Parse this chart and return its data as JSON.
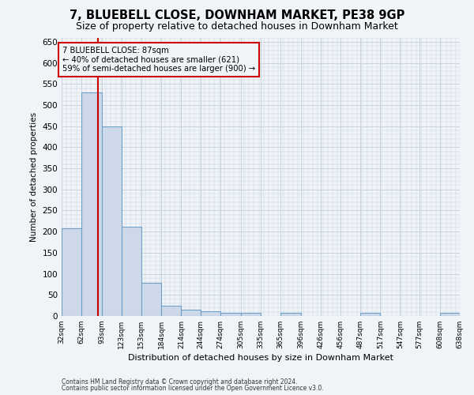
{
  "title": "7, BLUEBELL CLOSE, DOWNHAM MARKET, PE38 9GP",
  "subtitle": "Size of property relative to detached houses in Downham Market",
  "xlabel": "Distribution of detached houses by size in Downham Market",
  "ylabel": "Number of detached properties",
  "footnote1": "Contains HM Land Registry data © Crown copyright and database right 2024.",
  "footnote2": "Contains public sector information licensed under the Open Government Licence v3.0.",
  "bin_edges": [
    32,
    62,
    93,
    123,
    153,
    184,
    214,
    244,
    274,
    305,
    335,
    365,
    396,
    426,
    456,
    487,
    517,
    547,
    577,
    608,
    638
  ],
  "bar_heights": [
    207,
    530,
    450,
    212,
    78,
    25,
    15,
    12,
    8,
    8,
    0,
    7,
    0,
    0,
    0,
    7,
    0,
    0,
    0,
    7
  ],
  "bar_color": "#cdd9e8",
  "bar_edge_color": "#6fa0c8",
  "grid_color": "#c8d4e0",
  "property_size": 87,
  "property_label": "7 BLUEBELL CLOSE: 87sqm",
  "annotation_line1": "← 40% of detached houses are smaller (621)",
  "annotation_line2": "59% of semi-detached houses are larger (900) →",
  "vline_color": "#cc0000",
  "annotation_box_color": "#cc0000",
  "ylim": [
    0,
    660
  ],
  "yticks": [
    0,
    50,
    100,
    150,
    200,
    250,
    300,
    350,
    400,
    450,
    500,
    550,
    600,
    650
  ],
  "background_color": "#f0f4f8",
  "title_fontsize": 10.5,
  "subtitle_fontsize": 9
}
